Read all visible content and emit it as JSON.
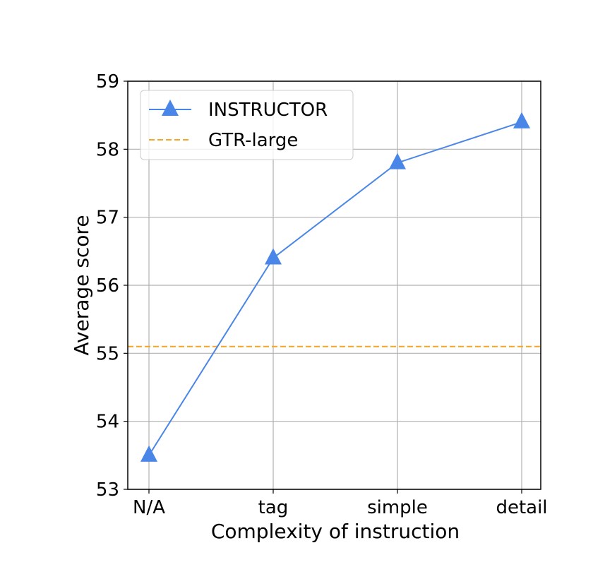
{
  "chart_data": {
    "type": "line",
    "xlabel": "Complexity of instruction",
    "ylabel": "Average score",
    "categories": [
      "N/A",
      "tag",
      "simple",
      "detail"
    ],
    "ylim": [
      53,
      59
    ],
    "yticks": [
      "53",
      "54",
      "55",
      "56",
      "57",
      "58",
      "59"
    ],
    "grid": true,
    "legend_position": "top-left",
    "series": [
      {
        "name": "INSTRUCTOR",
        "values": [
          53.5,
          56.4,
          57.8,
          58.4
        ],
        "color": "#4a86e8",
        "marker": "triangle"
      }
    ],
    "reference_lines": [
      {
        "name": "GTR-large",
        "value": 55.1,
        "color": "#f5a623",
        "style": "dashed"
      }
    ]
  }
}
